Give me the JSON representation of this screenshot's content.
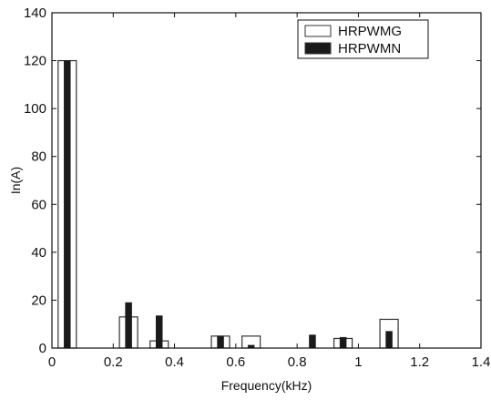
{
  "chart_data": {
    "type": "bar",
    "title": "",
    "xlabel": "Frequency(kHz)",
    "ylabel": "In(A)",
    "xlim": [
      0,
      1.4
    ],
    "ylim": [
      0,
      140
    ],
    "xticks": [
      "0",
      "0.2",
      "0.4",
      "0.6",
      "0.8",
      "1",
      "1.2",
      "1.4"
    ],
    "yticks": [
      "0",
      "20",
      "40",
      "60",
      "80",
      "100",
      "120",
      "140"
    ],
    "grid": false,
    "legend_position": "top-right",
    "colors": {
      "HRPWMG": "#ffffff",
      "HRPWMN": "#1a1a1a",
      "axis": "#111111"
    },
    "x": [
      0.05,
      0.25,
      0.35,
      0.55,
      0.65,
      0.85,
      0.95,
      1.1
    ],
    "series": [
      {
        "name": "HRPWMG",
        "values": [
          120,
          13,
          3,
          5,
          5,
          0,
          4,
          12
        ]
      },
      {
        "name": "HRPWMN",
        "values": [
          120,
          19,
          13.5,
          5,
          1.2,
          5.5,
          4.5,
          7
        ]
      }
    ]
  }
}
